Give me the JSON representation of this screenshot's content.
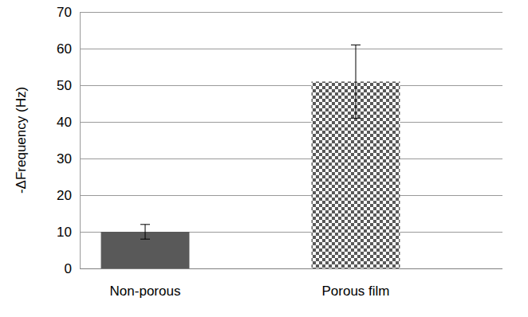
{
  "chart_data": {
    "type": "bar",
    "y_label": "-ΔFrequency (Hz)",
    "categories": [
      "Non-porous",
      "Porous film"
    ],
    "values": [
      10,
      51
    ],
    "errors": [
      2,
      10
    ],
    "colors": [
      "#595959",
      "#595959"
    ],
    "ylim": [
      0,
      70
    ],
    "yticks": [
      0,
      10,
      20,
      30,
      40,
      50,
      60,
      70
    ],
    "grid": true
  }
}
